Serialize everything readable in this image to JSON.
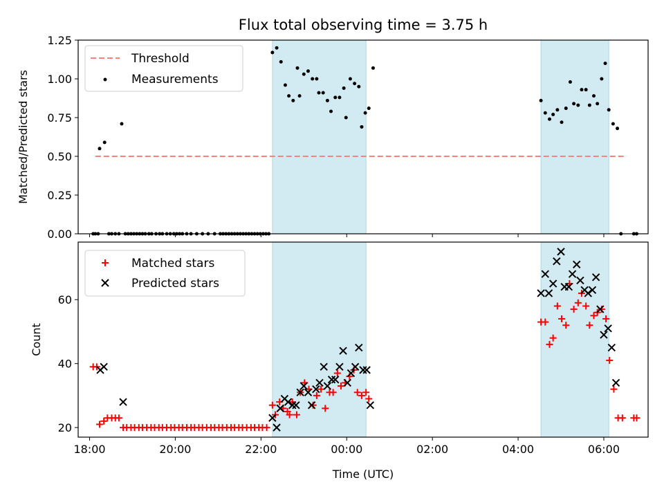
{
  "figure": {
    "title": "Flux total observing time = 3.75 h",
    "xlabel": "Time (UTC)"
  },
  "colors": {
    "span_fill": "#add8e6",
    "threshold": "#ff7f7f",
    "measurements": "#000000",
    "matched": "#ff0000",
    "predicted": "#000000"
  },
  "chart_data": [
    {
      "type": "scatter",
      "panel": "top",
      "ylabel": "Matched/Predicted stars",
      "xlim": [
        "17:44",
        "07:02"
      ],
      "ylim": [
        0,
        1.25
      ],
      "x_ticks": [
        "18:00",
        "20:00",
        "22:00",
        "00:00",
        "02:00",
        "04:00",
        "06:00"
      ],
      "y_ticks": [
        "0.00",
        "0.25",
        "0.50",
        "0.75",
        "1.00",
        "1.25"
      ],
      "shaded_spans": [
        [
          "22:16",
          "00:27"
        ],
        [
          "04:32",
          "06:07"
        ]
      ],
      "legend": {
        "position": "top-left",
        "entries": [
          "Threshold",
          "Measurements"
        ]
      },
      "threshold": {
        "name": "Threshold",
        "x": [
          "18:08",
          "06:32"
        ],
        "y": 0.5,
        "style": "dashed"
      },
      "series": [
        {
          "name": "Measurements",
          "points": [
            [
              "18:05",
              0
            ],
            [
              "18:08",
              0
            ],
            [
              "18:12",
              0
            ],
            [
              "18:14",
              0.55
            ],
            [
              "18:21",
              0.59
            ],
            [
              "18:27",
              0
            ],
            [
              "18:31",
              0
            ],
            [
              "18:36",
              0
            ],
            [
              "18:41",
              0
            ],
            [
              "18:45",
              0.71
            ],
            [
              "18:50",
              0
            ],
            [
              "18:54",
              0
            ],
            [
              "18:58",
              0
            ],
            [
              "19:02",
              0
            ],
            [
              "19:06",
              0
            ],
            [
              "19:10",
              0
            ],
            [
              "19:14",
              0
            ],
            [
              "19:18",
              0
            ],
            [
              "19:23",
              0
            ],
            [
              "19:27",
              0
            ],
            [
              "19:33",
              0
            ],
            [
              "19:38",
              0
            ],
            [
              "19:42",
              0
            ],
            [
              "19:48",
              0
            ],
            [
              "19:53",
              0
            ],
            [
              "19:58",
              0
            ],
            [
              "20:02",
              0
            ],
            [
              "20:06",
              0
            ],
            [
              "20:10",
              0
            ],
            [
              "20:16",
              0
            ],
            [
              "20:22",
              0
            ],
            [
              "20:30",
              0
            ],
            [
              "20:38",
              0
            ],
            [
              "20:46",
              0
            ],
            [
              "20:55",
              0
            ],
            [
              "21:03",
              0
            ],
            [
              "21:07",
              0
            ],
            [
              "21:11",
              0
            ],
            [
              "21:15",
              0
            ],
            [
              "21:19",
              0
            ],
            [
              "21:23",
              0
            ],
            [
              "21:27",
              0
            ],
            [
              "21:31",
              0
            ],
            [
              "21:35",
              0
            ],
            [
              "21:39",
              0
            ],
            [
              "21:43",
              0
            ],
            [
              "21:47",
              0
            ],
            [
              "21:51",
              0
            ],
            [
              "21:55",
              0
            ],
            [
              "21:59",
              0
            ],
            [
              "22:03",
              0
            ],
            [
              "22:07",
              0
            ],
            [
              "22:11",
              0
            ],
            [
              "22:16",
              1.17
            ],
            [
              "22:22",
              1.2
            ],
            [
              "22:28",
              1.11
            ],
            [
              "22:34",
              0.96
            ],
            [
              "22:39",
              0.89
            ],
            [
              "22:45",
              0.86
            ],
            [
              "22:51",
              1.07
            ],
            [
              "22:54",
              0.89
            ],
            [
              "23:00",
              1.03
            ],
            [
              "23:06",
              1.05
            ],
            [
              "23:12",
              1.0
            ],
            [
              "23:18",
              1.0
            ],
            [
              "23:21",
              0.91
            ],
            [
              "23:27",
              0.91
            ],
            [
              "23:33",
              0.86
            ],
            [
              "23:38",
              0.79
            ],
            [
              "23:44",
              0.88
            ],
            [
              "23:50",
              0.88
            ],
            [
              "23:56",
              0.94
            ],
            [
              "23:59",
              0.75
            ],
            [
              "00:05",
              1.0
            ],
            [
              "00:11",
              0.97
            ],
            [
              "00:17",
              0.95
            ],
            [
              "00:21",
              0.69
            ],
            [
              "00:26",
              0.78
            ],
            [
              "00:31",
              0.81
            ],
            [
              "00:37",
              1.07
            ],
            [
              "04:32",
              0.86
            ],
            [
              "04:38",
              0.78
            ],
            [
              "04:44",
              0.74
            ],
            [
              "04:49",
              0.77
            ],
            [
              "04:55",
              0.8
            ],
            [
              "05:01",
              0.72
            ],
            [
              "05:07",
              0.81
            ],
            [
              "05:13",
              0.98
            ],
            [
              "05:18",
              0.84
            ],
            [
              "05:24",
              0.83
            ],
            [
              "05:29",
              0.93
            ],
            [
              "05:35",
              0.93
            ],
            [
              "05:40",
              0.83
            ],
            [
              "05:46",
              0.89
            ],
            [
              "05:51",
              0.84
            ],
            [
              "05:57",
              1.0
            ],
            [
              "06:02",
              1.1
            ],
            [
              "06:07",
              0.8
            ],
            [
              "06:13",
              0.71
            ],
            [
              "06:19",
              0.68
            ],
            [
              "06:24",
              0
            ],
            [
              "06:42",
              0
            ],
            [
              "06:46",
              0
            ]
          ]
        }
      ]
    },
    {
      "type": "scatter",
      "panel": "bottom",
      "ylabel": "Count",
      "xlim": [
        "17:44",
        "07:02"
      ],
      "ylim": [
        17,
        78
      ],
      "x_ticks": [
        "18:00",
        "20:00",
        "22:00",
        "00:00",
        "02:00",
        "04:00",
        "06:00"
      ],
      "y_ticks": [
        "20",
        "40",
        "60"
      ],
      "shaded_spans": [
        [
          "22:16",
          "00:27"
        ],
        [
          "04:32",
          "06:07"
        ]
      ],
      "legend": {
        "position": "top-left",
        "entries": [
          "Matched stars",
          "Predicted stars"
        ]
      },
      "series": [
        {
          "name": "Matched stars",
          "marker": "plus",
          "points": [
            [
              "18:05",
              39
            ],
            [
              "18:10",
              39
            ],
            [
              "18:14",
              21
            ],
            [
              "18:20",
              22
            ],
            [
              "18:25",
              23
            ],
            [
              "18:31",
              23
            ],
            [
              "18:36",
              23
            ],
            [
              "18:41",
              23
            ],
            [
              "18:47",
              20
            ],
            [
              "18:52",
              20
            ],
            [
              "18:58",
              20
            ],
            [
              "19:03",
              20
            ],
            [
              "19:09",
              20
            ],
            [
              "19:14",
              20
            ],
            [
              "19:20",
              20
            ],
            [
              "19:26",
              20
            ],
            [
              "19:31",
              20
            ],
            [
              "19:37",
              20
            ],
            [
              "19:42",
              20
            ],
            [
              "19:48",
              20
            ],
            [
              "19:54",
              20
            ],
            [
              "19:59",
              20
            ],
            [
              "20:05",
              20
            ],
            [
              "20:10",
              20
            ],
            [
              "20:16",
              20
            ],
            [
              "20:22",
              20
            ],
            [
              "20:27",
              20
            ],
            [
              "20:33",
              20
            ],
            [
              "20:38",
              20
            ],
            [
              "20:44",
              20
            ],
            [
              "20:50",
              20
            ],
            [
              "20:55",
              20
            ],
            [
              "21:01",
              20
            ],
            [
              "21:06",
              20
            ],
            [
              "21:12",
              20
            ],
            [
              "21:18",
              20
            ],
            [
              "21:23",
              20
            ],
            [
              "21:29",
              20
            ],
            [
              "21:34",
              20
            ],
            [
              "21:40",
              20
            ],
            [
              "21:46",
              20
            ],
            [
              "21:51",
              20
            ],
            [
              "21:57",
              20
            ],
            [
              "22:02",
              20
            ],
            [
              "22:08",
              20
            ],
            [
              "22:16",
              27
            ],
            [
              "22:20",
              24
            ],
            [
              "22:26",
              28
            ],
            [
              "22:31",
              26
            ],
            [
              "22:37",
              25
            ],
            [
              "22:40",
              24
            ],
            [
              "22:44",
              28
            ],
            [
              "22:50",
              24
            ],
            [
              "22:55",
              31
            ],
            [
              "23:01",
              34
            ],
            [
              "23:07",
              32
            ],
            [
              "23:13",
              27
            ],
            [
              "23:18",
              30
            ],
            [
              "23:24",
              32
            ],
            [
              "23:30",
              26
            ],
            [
              "23:36",
              31
            ],
            [
              "23:41",
              31
            ],
            [
              "23:47",
              37
            ],
            [
              "23:52",
              33
            ],
            [
              "23:58",
              34
            ],
            [
              "00:04",
              36
            ],
            [
              "00:10",
              38
            ],
            [
              "00:15",
              31
            ],
            [
              "00:21",
              30
            ],
            [
              "00:27",
              31
            ],
            [
              "00:31",
              29
            ],
            [
              "04:32",
              53
            ],
            [
              "04:38",
              53
            ],
            [
              "04:44",
              46
            ],
            [
              "04:49",
              48
            ],
            [
              "04:55",
              58
            ],
            [
              "05:01",
              54
            ],
            [
              "05:07",
              52
            ],
            [
              "05:12",
              65
            ],
            [
              "05:18",
              57
            ],
            [
              "05:24",
              59
            ],
            [
              "05:29",
              62
            ],
            [
              "05:35",
              58
            ],
            [
              "05:40",
              52
            ],
            [
              "05:46",
              55
            ],
            [
              "05:51",
              56
            ],
            [
              "05:57",
              57
            ],
            [
              "06:03",
              54
            ],
            [
              "06:08",
              41
            ],
            [
              "06:14",
              32
            ],
            [
              "06:20",
              23
            ],
            [
              "06:26",
              23
            ],
            [
              "06:42",
              23
            ],
            [
              "06:46",
              23
            ]
          ]
        },
        {
          "name": "Predicted stars",
          "marker": "x",
          "points": [
            [
              "18:15",
              38
            ],
            [
              "18:20",
              39
            ],
            [
              "18:47",
              28
            ],
            [
              "22:16",
              23
            ],
            [
              "22:22",
              20
            ],
            [
              "22:27",
              26
            ],
            [
              "22:33",
              29
            ],
            [
              "22:38",
              28
            ],
            [
              "22:44",
              27
            ],
            [
              "22:49",
              27
            ],
            [
              "22:55",
              31
            ],
            [
              "23:00",
              33
            ],
            [
              "23:06",
              31
            ],
            [
              "23:11",
              27
            ],
            [
              "23:17",
              32
            ],
            [
              "23:22",
              34
            ],
            [
              "23:28",
              39
            ],
            [
              "23:33",
              33
            ],
            [
              "23:39",
              35
            ],
            [
              "23:44",
              35
            ],
            [
              "23:50",
              39
            ],
            [
              "23:55",
              44
            ],
            [
              "00:01",
              34
            ],
            [
              "00:06",
              37
            ],
            [
              "00:12",
              39
            ],
            [
              "00:17",
              45
            ],
            [
              "00:23",
              38
            ],
            [
              "00:28",
              38
            ],
            [
              "00:33",
              27
            ],
            [
              "04:32",
              62
            ],
            [
              "04:38",
              68
            ],
            [
              "04:43",
              62
            ],
            [
              "04:49",
              65
            ],
            [
              "04:54",
              72
            ],
            [
              "05:00",
              75
            ],
            [
              "05:05",
              64
            ],
            [
              "05:11",
              64
            ],
            [
              "05:16",
              68
            ],
            [
              "05:22",
              71
            ],
            [
              "05:27",
              66
            ],
            [
              "05:33",
              63
            ],
            [
              "05:38",
              62
            ],
            [
              "05:44",
              63
            ],
            [
              "05:49",
              67
            ],
            [
              "05:55",
              57
            ],
            [
              "06:00",
              49
            ],
            [
              "06:06",
              51
            ],
            [
              "06:11",
              45
            ],
            [
              "06:17",
              34
            ]
          ]
        }
      ]
    }
  ]
}
